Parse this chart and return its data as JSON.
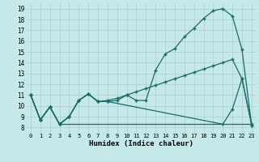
{
  "xlabel": "Humidex (Indice chaleur)",
  "bg_color": "#c5e8e8",
  "grid_color": "#aacfcf",
  "line_color": "#1a6b6b",
  "xlim": [
    -0.5,
    23.5
  ],
  "ylim": [
    7.5,
    19.5
  ],
  "x_ticks": [
    0,
    1,
    2,
    3,
    4,
    5,
    6,
    7,
    8,
    9,
    10,
    11,
    12,
    13,
    14,
    15,
    16,
    17,
    18,
    19,
    20,
    21,
    22,
    23
  ],
  "y_ticks": [
    8,
    9,
    10,
    11,
    12,
    13,
    14,
    15,
    16,
    17,
    18,
    19
  ],
  "line1_x": [
    0,
    1,
    2,
    3,
    4,
    5,
    6,
    7,
    8,
    9,
    10,
    11,
    12,
    13,
    14,
    15,
    16,
    17,
    18,
    19,
    20,
    21,
    22,
    23
  ],
  "line1_y": [
    11.0,
    8.7,
    9.9,
    8.3,
    9.0,
    10.5,
    11.1,
    10.4,
    10.4,
    10.5,
    11.0,
    10.5,
    10.5,
    13.3,
    14.8,
    15.3,
    16.4,
    17.2,
    18.1,
    18.8,
    19.0,
    18.3,
    15.2,
    8.2
  ],
  "line2_x": [
    0,
    1,
    2,
    3,
    4,
    5,
    6,
    7,
    8,
    9,
    10,
    11,
    12,
    13,
    14,
    15,
    16,
    17,
    18,
    19,
    20,
    21,
    22,
    23
  ],
  "line2_y": [
    11.0,
    8.7,
    9.9,
    8.3,
    8.3,
    8.3,
    8.3,
    8.3,
    8.3,
    8.3,
    8.3,
    8.3,
    8.3,
    8.3,
    8.3,
    8.3,
    8.3,
    8.3,
    8.3,
    8.3,
    8.3,
    8.3,
    8.3,
    8.3
  ],
  "line3_x": [
    0,
    1,
    2,
    3,
    4,
    5,
    6,
    7,
    8,
    9,
    10,
    11,
    12,
    13,
    14,
    15,
    16,
    17,
    18,
    19,
    20,
    21,
    22,
    23
  ],
  "line3_y": [
    11.0,
    8.7,
    9.9,
    8.3,
    9.0,
    10.5,
    11.1,
    10.4,
    10.5,
    10.7,
    11.0,
    11.3,
    11.6,
    11.9,
    12.2,
    12.5,
    12.8,
    13.1,
    13.4,
    13.7,
    14.0,
    14.3,
    12.5,
    8.3
  ],
  "line4_x": [
    0,
    1,
    2,
    3,
    4,
    5,
    6,
    7,
    8,
    20,
    21,
    22,
    23
  ],
  "line4_y": [
    11.0,
    8.7,
    9.9,
    8.3,
    9.0,
    10.5,
    11.1,
    10.4,
    10.4,
    8.3,
    9.7,
    12.5,
    8.2
  ]
}
